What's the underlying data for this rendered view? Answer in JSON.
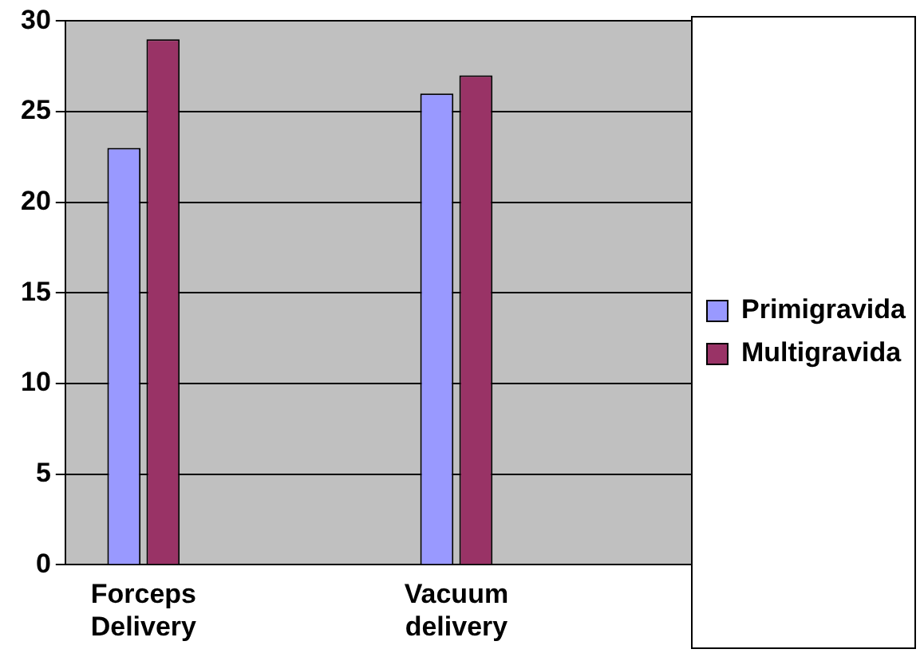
{
  "chart_data": {
    "type": "bar",
    "categories": [
      "Forceps Delivery",
      null,
      "Vacuum delivery",
      null
    ],
    "series": [
      {
        "name": "Primigravida",
        "color": "#9999ff",
        "values": [
          23,
          null,
          26,
          null
        ]
      },
      {
        "name": "Multigravida",
        "color": "#993366",
        "values": [
          29,
          null,
          27,
          null
        ]
      }
    ],
    "ylim": [
      0,
      30
    ],
    "yticks": [
      0,
      5,
      10,
      15,
      20,
      25,
      30
    ],
    "grid": "y",
    "legend": "right"
  }
}
